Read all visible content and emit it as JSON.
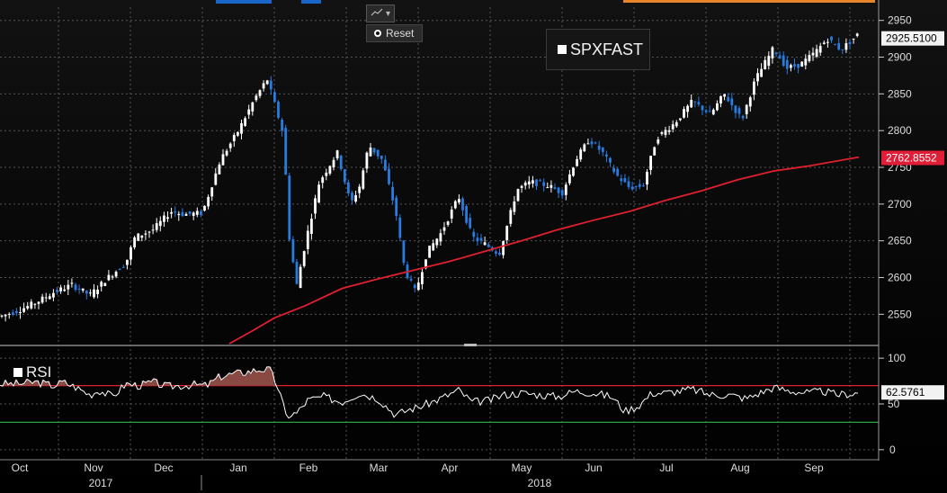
{
  "chart_data": [
    {
      "type": "candlestick",
      "ticker_label": "SPXFAST",
      "ylim": [
        2510,
        2968
      ],
      "y_ticks": [
        2550,
        2600,
        2650,
        2700,
        2750,
        2800,
        2850,
        2900,
        2950
      ],
      "last_price": "2925.5100",
      "moving_average_value": "2762.8552",
      "colors": {
        "up": "#ffffff",
        "down": "#2a7be0",
        "moving_average": "#e0202e"
      },
      "close_path": [
        [
          0,
          2547
        ],
        [
          20,
          2555
        ],
        [
          40,
          2566
        ],
        [
          60,
          2580
        ],
        [
          80,
          2590
        ],
        [
          100,
          2576
        ],
        [
          120,
          2600
        ],
        [
          140,
          2620
        ],
        [
          150,
          2655
        ],
        [
          170,
          2665
        ],
        [
          190,
          2690
        ],
        [
          205,
          2686
        ],
        [
          225,
          2688
        ],
        [
          245,
          2760
        ],
        [
          265,
          2800
        ],
        [
          283,
          2843
        ],
        [
          297,
          2870
        ],
        [
          305,
          2838
        ],
        [
          315,
          2795
        ],
        [
          322,
          2650
        ],
        [
          330,
          2590
        ],
        [
          340,
          2650
        ],
        [
          355,
          2730
        ],
        [
          375,
          2770
        ],
        [
          390,
          2700
        ],
        [
          400,
          2725
        ],
        [
          410,
          2780
        ],
        [
          425,
          2760
        ],
        [
          440,
          2690
        ],
        [
          450,
          2610
        ],
        [
          462,
          2580
        ],
        [
          475,
          2635
        ],
        [
          490,
          2660
        ],
        [
          510,
          2710
        ],
        [
          525,
          2655
        ],
        [
          540,
          2645
        ],
        [
          555,
          2632
        ],
        [
          575,
          2720
        ],
        [
          590,
          2730
        ],
        [
          610,
          2725
        ],
        [
          625,
          2715
        ],
        [
          640,
          2760
        ],
        [
          655,
          2788
        ],
        [
          670,
          2770
        ],
        [
          685,
          2740
        ],
        [
          700,
          2722
        ],
        [
          715,
          2725
        ],
        [
          730,
          2790
        ],
        [
          750,
          2810
        ],
        [
          770,
          2840
        ],
        [
          790,
          2822
        ],
        [
          805,
          2850
        ],
        [
          825,
          2815
        ],
        [
          840,
          2870
        ],
        [
          860,
          2912
        ],
        [
          875,
          2885
        ],
        [
          890,
          2890
        ],
        [
          905,
          2905
        ],
        [
          920,
          2925
        ],
        [
          935,
          2910
        ],
        [
          955,
          2932
        ]
      ],
      "moving_average_path": [
        [
          255,
          2510
        ],
        [
          280,
          2527
        ],
        [
          305,
          2545
        ],
        [
          340,
          2562
        ],
        [
          380,
          2585
        ],
        [
          420,
          2598
        ],
        [
          460,
          2610
        ],
        [
          500,
          2622
        ],
        [
          540,
          2636
        ],
        [
          580,
          2650
        ],
        [
          620,
          2665
        ],
        [
          660,
          2678
        ],
        [
          700,
          2690
        ],
        [
          740,
          2705
        ],
        [
          780,
          2718
        ],
        [
          820,
          2733
        ],
        [
          860,
          2745
        ],
        [
          900,
          2752
        ],
        [
          955,
          2764
        ]
      ]
    },
    {
      "type": "line",
      "label": "RSI",
      "ylim": [
        -8,
        108
      ],
      "y_ticks": [
        0,
        50,
        100
      ],
      "overbought": 70,
      "oversold": 30,
      "last_value": "62.5761",
      "colors": {
        "line": "#ffffff",
        "overbought": "#e0202e",
        "oversold": "#2ea04a",
        "fill": "#8a4a44"
      },
      "path": [
        [
          0,
          72
        ],
        [
          20,
          72
        ],
        [
          40,
          74
        ],
        [
          60,
          70
        ],
        [
          70,
          74
        ],
        [
          85,
          68
        ],
        [
          100,
          60
        ],
        [
          110,
          65
        ],
        [
          125,
          58
        ],
        [
          140,
          72
        ],
        [
          155,
          70
        ],
        [
          170,
          74
        ],
        [
          185,
          69
        ],
        [
          200,
          70
        ],
        [
          215,
          71
        ],
        [
          230,
          70
        ],
        [
          245,
          80
        ],
        [
          260,
          83
        ],
        [
          275,
          85
        ],
        [
          290,
          88
        ],
        [
          300,
          87
        ],
        [
          310,
          66
        ],
        [
          318,
          37
        ],
        [
          330,
          40
        ],
        [
          342,
          54
        ],
        [
          360,
          58
        ],
        [
          380,
          52
        ],
        [
          400,
          62
        ],
        [
          420,
          56
        ],
        [
          440,
          38
        ],
        [
          455,
          44
        ],
        [
          470,
          48
        ],
        [
          490,
          56
        ],
        [
          510,
          65
        ],
        [
          525,
          52
        ],
        [
          545,
          54
        ],
        [
          560,
          60
        ],
        [
          580,
          62
        ],
        [
          600,
          60
        ],
        [
          620,
          58
        ],
        [
          640,
          64
        ],
        [
          660,
          62
        ],
        [
          680,
          58
        ],
        [
          695,
          42
        ],
        [
          710,
          48
        ],
        [
          725,
          62
        ],
        [
          740,
          62
        ],
        [
          755,
          64
        ],
        [
          770,
          66
        ],
        [
          790,
          60
        ],
        [
          810,
          60
        ],
        [
          830,
          56
        ],
        [
          845,
          62
        ],
        [
          860,
          68
        ],
        [
          880,
          64
        ],
        [
          900,
          62
        ],
        [
          915,
          64
        ],
        [
          930,
          60
        ],
        [
          955,
          62
        ]
      ]
    }
  ],
  "x_axis": {
    "months": [
      "Oct",
      "Nov",
      "Dec",
      "Jan",
      "Feb",
      "Mar",
      "Apr",
      "May",
      "Jun",
      "Jul",
      "Aug",
      "Sep"
    ],
    "years": [
      "2017",
      "2018"
    ]
  },
  "toolbar": {
    "reset_label": "Reset"
  }
}
